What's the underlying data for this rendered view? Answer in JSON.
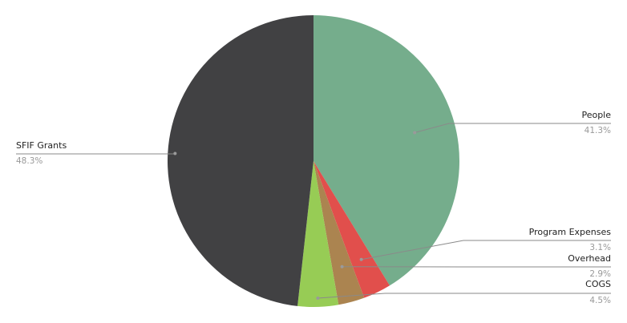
{
  "chart_data": {
    "type": "pie",
    "title": "",
    "legend": "none",
    "slices": [
      {
        "label": "People",
        "value": 41.3,
        "percent_label": "41.3%",
        "color": "#75ad8c"
      },
      {
        "label": "Program Expenses",
        "value": 3.1,
        "percent_label": "3.1%",
        "color": "#e14f4c"
      },
      {
        "label": "Overhead",
        "value": 2.9,
        "percent_label": "2.9%",
        "color": "#ab8450"
      },
      {
        "label": "COGS",
        "value": 4.5,
        "percent_label": "4.5%",
        "color": "#97cc55"
      },
      {
        "label": "SFIF Grants",
        "value": 48.3,
        "percent_label": "48.3%",
        "color": "#414143"
      }
    ]
  }
}
